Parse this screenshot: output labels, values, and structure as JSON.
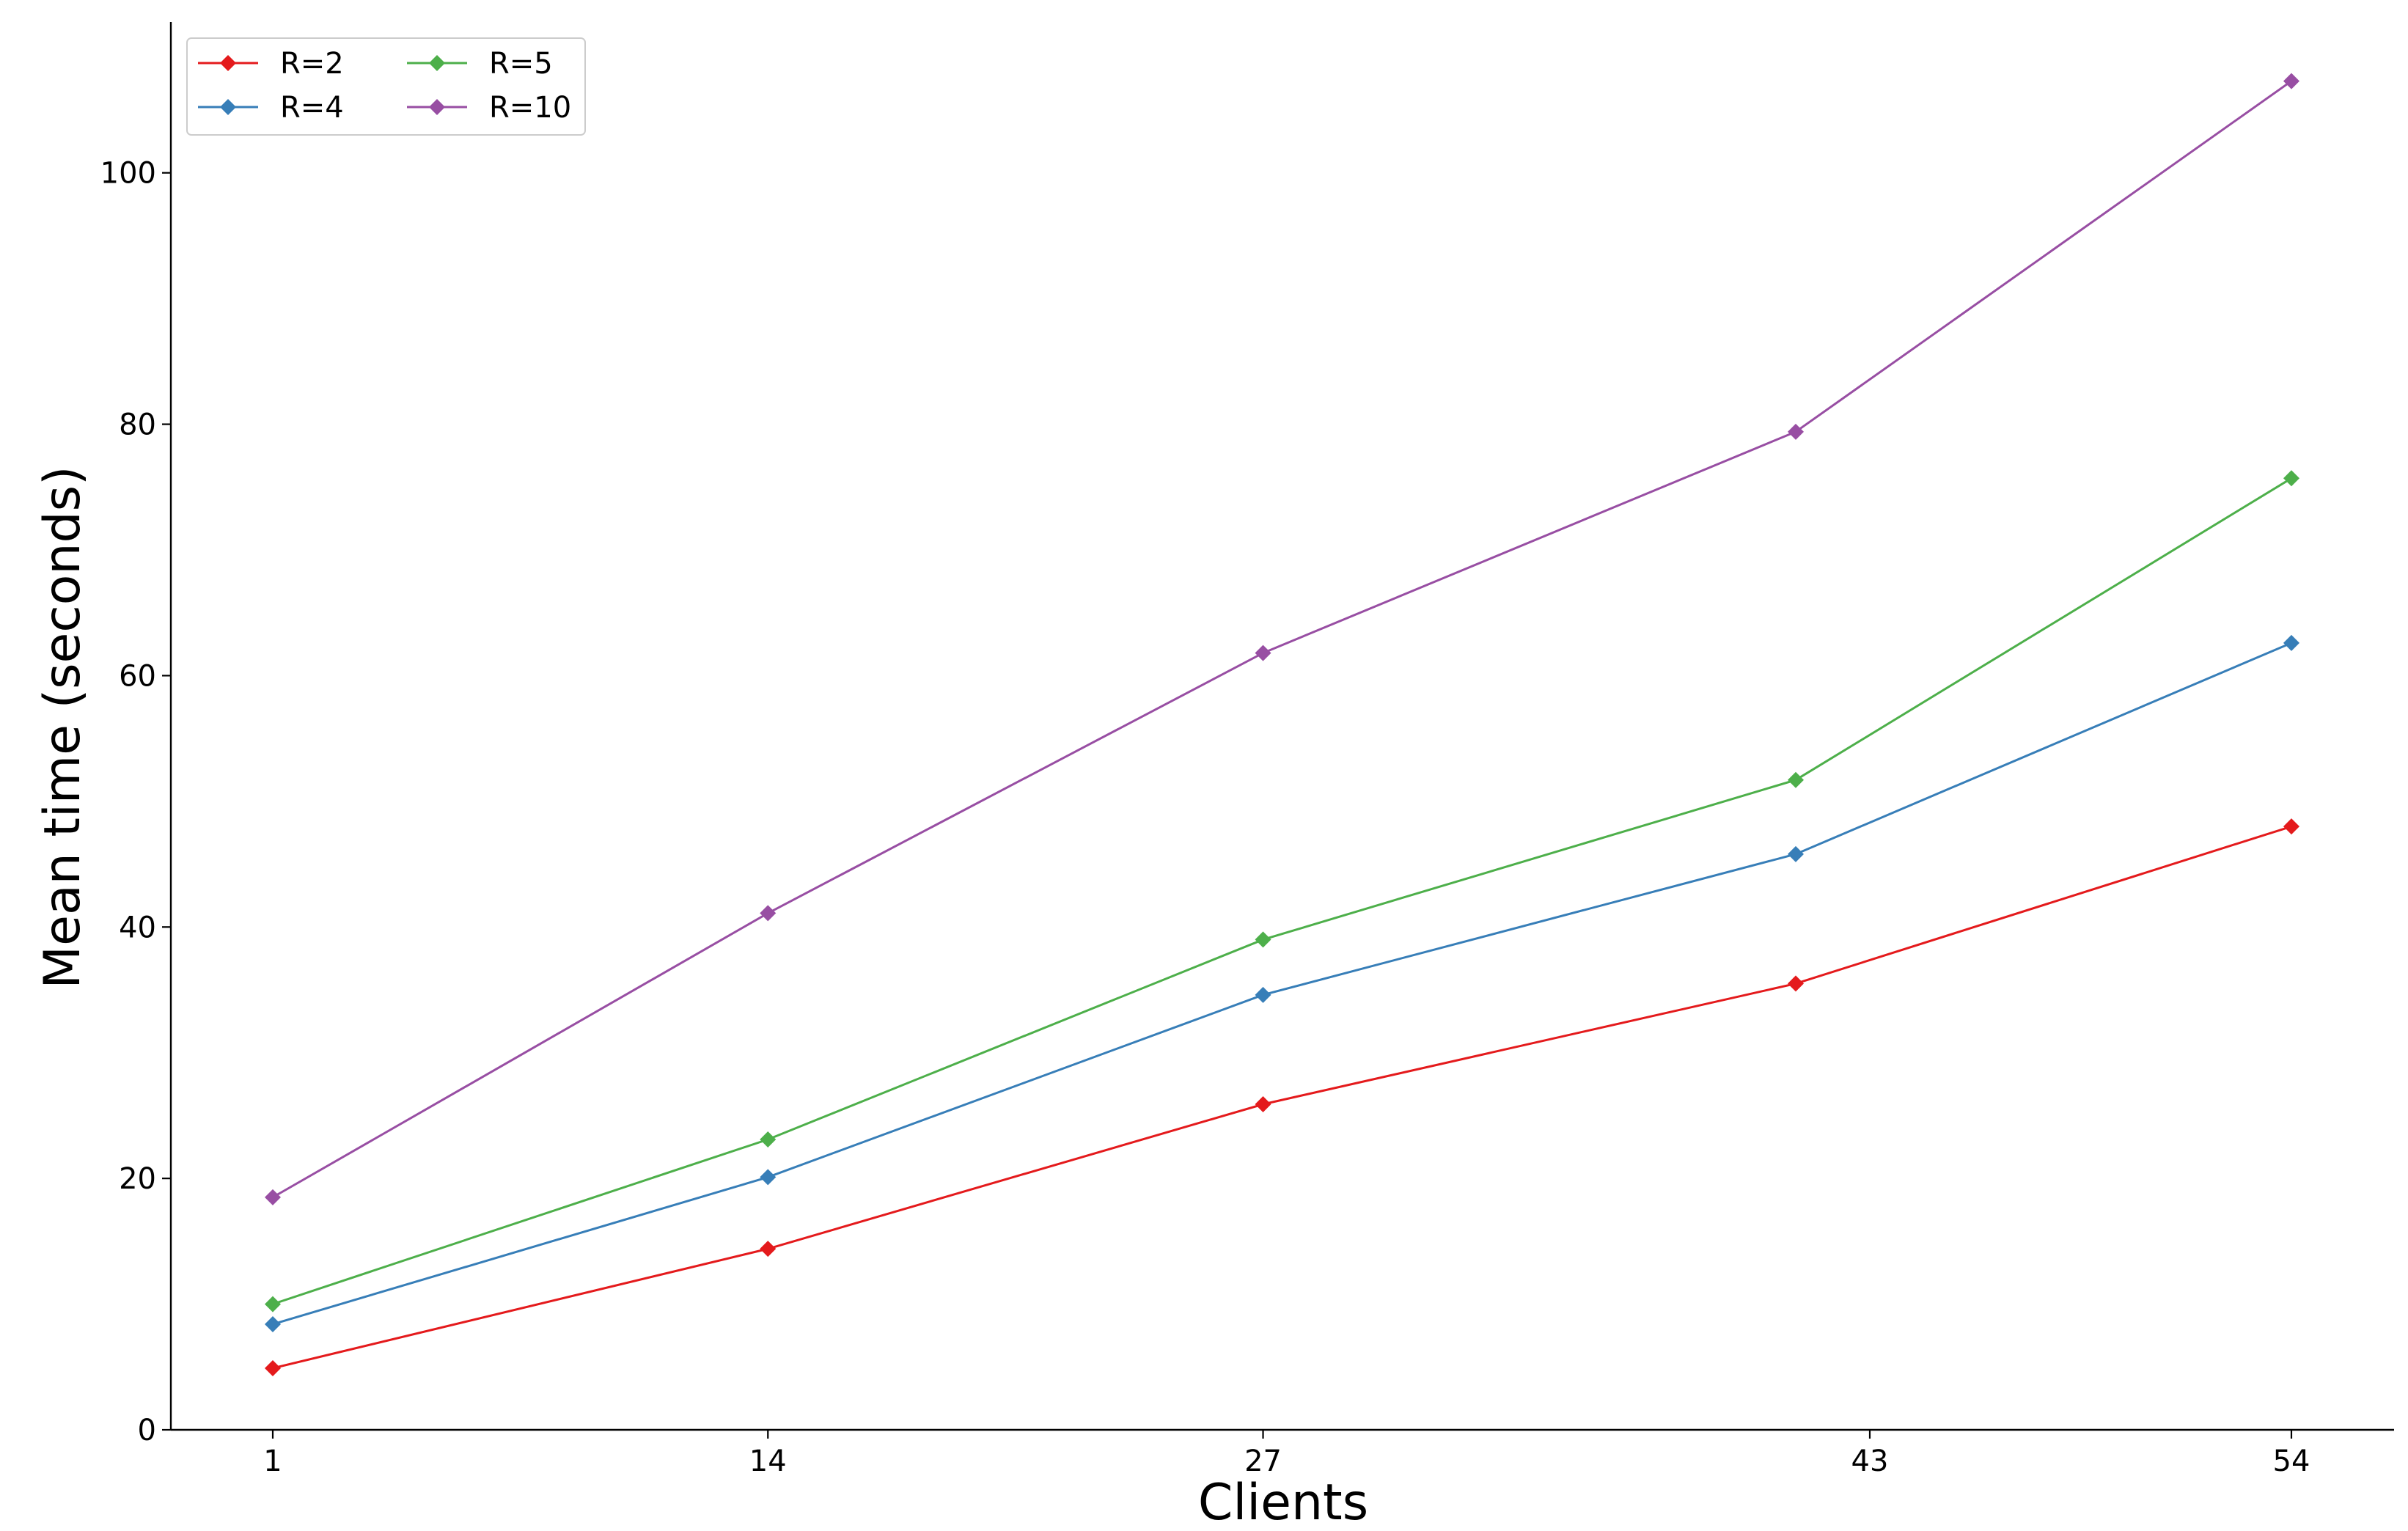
{
  "chart_data": {
    "type": "line",
    "title": "",
    "xlabel": "Clients",
    "ylabel": "Mean time (seconds)",
    "x": [
      1,
      14,
      27,
      43,
      54
    ],
    "x_tick_labels": [
      "1",
      "14",
      "27",
      "43",
      "54"
    ],
    "y_ticks": [
      0,
      20,
      40,
      60,
      80,
      100
    ],
    "y_tick_labels": [
      "0",
      "20",
      "40",
      "60",
      "80",
      "100"
    ],
    "ylim": [
      0,
      112
    ],
    "grid": false,
    "legend_position": "top-left",
    "series": [
      {
        "name": "R=2",
        "color": "#e41a1c",
        "marker": "diamond",
        "values": [
          4.9,
          14.4,
          25.9,
          35.5,
          48.0
        ]
      },
      {
        "name": "R=4",
        "color": "#377eb8",
        "marker": "diamond",
        "values": [
          8.4,
          20.1,
          34.6,
          45.8,
          62.6
        ]
      },
      {
        "name": "R=5",
        "color": "#4daf4a",
        "marker": "diamond",
        "values": [
          10.0,
          23.1,
          39.0,
          51.7,
          75.7
        ]
      },
      {
        "name": "R=10",
        "color": "#984ea3",
        "marker": "diamond",
        "values": [
          18.5,
          41.1,
          61.8,
          79.4,
          107.3
        ]
      }
    ]
  }
}
